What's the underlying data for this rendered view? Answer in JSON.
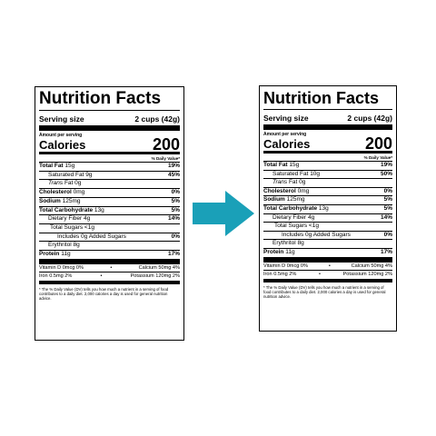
{
  "colors": {
    "arrow": "#1aa0b8"
  },
  "left": {
    "title": "Nutrition Facts",
    "serving_label": "Serving size",
    "serving_value": "2 cups (42g)",
    "amount_per": "Amount per serving",
    "calories_label": "Calories",
    "calories_value": "200",
    "dv_header": "% Daily Value*",
    "total_fat": {
      "label": "Total Fat",
      "amount": "15g",
      "pct": "19%"
    },
    "sat_fat": {
      "label": "Saturated Fat 9g",
      "pct": "45%"
    },
    "trans_fat": {
      "label": "Trans",
      "rest": " Fat 0g"
    },
    "cholesterol": {
      "label": "Cholesterol",
      "amount": "0mg",
      "pct": "0%"
    },
    "sodium": {
      "label": "Sodium",
      "amount": "125mg",
      "pct": "5%"
    },
    "carb": {
      "label": "Total Carbohydrate",
      "amount": "13g",
      "pct": "5%"
    },
    "fiber": {
      "label": "Dietary Fiber 4g",
      "pct": "14%"
    },
    "sugars": {
      "label": "Total Sugars <1g"
    },
    "added_sugars": {
      "label": "Includes 0g Added Sugars",
      "pct": "0%"
    },
    "erythritol": {
      "label": "Erythritol 8g"
    },
    "protein": {
      "label": "Protein",
      "amount": "11g",
      "pct": "17%"
    },
    "vitd": "Vitamin D 0mcg 0%",
    "calcium": "Calcium 50mg 4%",
    "iron": "Iron 0.5mg 2%",
    "potassium": "Potassium 120mg 2%",
    "bullet": "•",
    "footnote": "* The % Daily Value (DV) tells you how much a nutrient in a serving of food contributes to a daily diet. 2,000 calories a day is used for general nutrition advice."
  },
  "right": {
    "title": "Nutrition Facts",
    "serving_label": "Serving size",
    "serving_value": "2 cups (42g)",
    "amount_per": "Amount per serving",
    "calories_label": "Calories",
    "calories_value": "200",
    "dv_header": "% Daily Value*",
    "total_fat": {
      "label": "Total Fat",
      "amount": "15g",
      "pct": "19%"
    },
    "sat_fat": {
      "label": "Saturated Fat 10g",
      "pct": "50%"
    },
    "trans_fat": {
      "label": "Trans",
      "rest": " Fat 0g"
    },
    "cholesterol": {
      "label": "Cholesterol",
      "amount": "0mg",
      "pct": "0%"
    },
    "sodium": {
      "label": "Sodium",
      "amount": "125mg",
      "pct": "5%"
    },
    "carb": {
      "label": "Total Carbohydrate",
      "amount": "13g",
      "pct": "5%"
    },
    "fiber": {
      "label": "Dietary Fiber 4g",
      "pct": "14%"
    },
    "sugars": {
      "label": "Total Sugars <1g"
    },
    "added_sugars": {
      "label": "Includes 0g Added Sugars",
      "pct": "0%"
    },
    "erythritol": {
      "label": "Erythritol 8g"
    },
    "protein": {
      "label": "Protein",
      "amount": "11g",
      "pct": "17%"
    },
    "vitd": "Vitamin D 0mcg 0%",
    "calcium": "Calcium 50mg 4%",
    "iron": "Iron 0.5mg 2%",
    "potassium": "Potassium 120mg 2%",
    "bullet": "•",
    "footnote": "* The % Daily Value (DV) tells you how much a nutrient in a serving of food contributes to a daily diet. 2,000 calories a day is used for general nutrition advice."
  }
}
